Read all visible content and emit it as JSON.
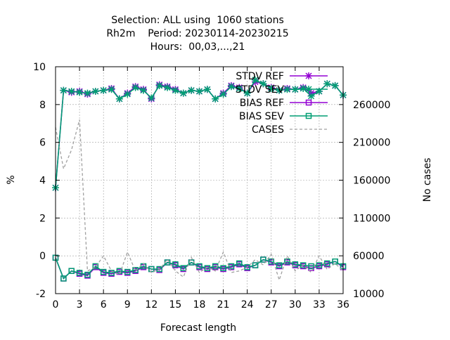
{
  "chart_data": {
    "type": "line",
    "title_lines": [
      "Selection: ALL using  1060 stations",
      "Rh2m    Period: 20230114-20230215",
      "Hours:  00,03,...,21"
    ],
    "xlabel": "Forecast length",
    "ylabel": "%",
    "y2label": "No cases",
    "xlim": [
      0,
      36
    ],
    "ylim": [
      -2,
      10
    ],
    "y2lim": [
      10000,
      310000
    ],
    "xticks": [
      0,
      3,
      6,
      9,
      12,
      15,
      18,
      21,
      24,
      27,
      30,
      33,
      36
    ],
    "yticks": [
      -2,
      0,
      2,
      4,
      6,
      8,
      10
    ],
    "y2ticks": [
      10000,
      60000,
      110000,
      160000,
      210000,
      260000
    ],
    "grid": true,
    "legend_position": "top-right",
    "x": [
      0,
      1,
      2,
      3,
      4,
      5,
      6,
      7,
      8,
      9,
      10,
      11,
      12,
      13,
      14,
      15,
      16,
      17,
      18,
      19,
      20,
      21,
      22,
      23,
      24,
      25,
      26,
      27,
      28,
      29,
      30,
      31,
      32,
      33,
      34,
      35,
      36
    ],
    "series": [
      {
        "name": "STDV REF",
        "color": "#9400d3",
        "marker": "star",
        "axis": "y",
        "values": [
          3.6,
          8.75,
          8.65,
          8.7,
          8.55,
          8.7,
          8.75,
          8.85,
          8.3,
          8.6,
          8.95,
          8.8,
          8.3,
          9.05,
          8.95,
          8.8,
          8.6,
          8.75,
          8.7,
          8.8,
          8.3,
          8.6,
          9.0,
          8.9,
          8.6,
          9.2,
          9.1,
          8.9,
          8.75,
          8.85,
          8.8,
          8.9,
          8.6,
          8.7,
          9.1,
          9.0,
          8.5
        ]
      },
      {
        "name": "STDV SEV",
        "color": "#009e73",
        "marker": "star",
        "axis": "y",
        "values": [
          3.6,
          8.75,
          8.7,
          8.65,
          8.6,
          8.7,
          8.75,
          8.8,
          8.3,
          8.55,
          8.9,
          8.75,
          8.35,
          9.0,
          8.9,
          8.75,
          8.6,
          8.75,
          8.7,
          8.8,
          8.3,
          8.55,
          8.95,
          8.85,
          8.6,
          9.3,
          9.1,
          8.85,
          8.75,
          8.8,
          8.8,
          8.85,
          8.45,
          8.7,
          9.1,
          9.0,
          8.5
        ]
      },
      {
        "name": "BIAS REF",
        "color": "#9400d3",
        "marker": "square",
        "axis": "y",
        "values": [
          -0.1,
          -1.2,
          -0.8,
          -0.95,
          -1.05,
          -0.6,
          -0.9,
          -0.95,
          -0.85,
          -0.9,
          -0.8,
          -0.6,
          -0.7,
          -0.75,
          -0.35,
          -0.5,
          -0.7,
          -0.35,
          -0.6,
          -0.7,
          -0.6,
          -0.7,
          -0.6,
          -0.45,
          -0.65,
          -0.5,
          -0.2,
          -0.35,
          -0.55,
          -0.35,
          -0.5,
          -0.55,
          -0.65,
          -0.55,
          -0.45,
          -0.3,
          -0.6
        ]
      },
      {
        "name": "BIAS SEV",
        "color": "#009e73",
        "marker": "square",
        "axis": "y",
        "values": [
          -0.1,
          -1.2,
          -0.8,
          -0.9,
          -1.0,
          -0.55,
          -0.85,
          -0.9,
          -0.8,
          -0.85,
          -0.75,
          -0.55,
          -0.7,
          -0.7,
          -0.35,
          -0.45,
          -0.65,
          -0.35,
          -0.55,
          -0.65,
          -0.55,
          -0.65,
          -0.55,
          -0.4,
          -0.6,
          -0.5,
          -0.2,
          -0.3,
          -0.5,
          -0.3,
          -0.45,
          -0.5,
          -0.55,
          -0.5,
          -0.4,
          -0.3,
          -0.55
        ]
      },
      {
        "name": "CASES",
        "color": "#a0a0a0",
        "dash": true,
        "axis": "y2",
        "values": [
          230000,
          175000,
          200000,
          240000,
          40000,
          45000,
          60000,
          40000,
          35000,
          65000,
          40000,
          50000,
          38000,
          42000,
          55000,
          40000,
          32000,
          58000,
          38000,
          45000,
          40000,
          65000,
          38000,
          40000,
          45000,
          55000,
          48000,
          62000,
          28000,
          60000,
          40000,
          48000,
          38000,
          60000,
          42000,
          50000,
          40000
        ]
      }
    ]
  }
}
